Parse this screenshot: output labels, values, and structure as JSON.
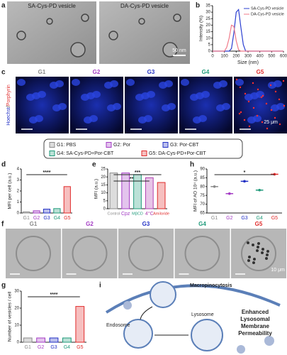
{
  "panel_labels": [
    "a",
    "b",
    "c",
    "d",
    "e",
    "f",
    "g",
    "h",
    "i"
  ],
  "group_colors": [
    "#8a8a8a",
    "#a33bc4",
    "#2230c4",
    "#1f9a7a",
    "#e02b2b"
  ],
  "tem": {
    "labels": [
      "SA-Cys-PD vesicle",
      "DA-Cys-PD vesicle"
    ],
    "scale": "50 nm"
  },
  "fluorescence": {
    "groups": [
      "G1",
      "G2",
      "G3",
      "G4",
      "G5"
    ],
    "channels": [
      "Hoechst",
      "/",
      "Porphyrin"
    ],
    "scale": "25 μm"
  },
  "legend": [
    "G1: PBS",
    "G2: Por",
    "G3: Por-CBT",
    "G4: SA-Cys-PD+Por-CBT",
    "G5: DA-Cys-PD+Por-CBT"
  ],
  "brightfield": {
    "groups": [
      "G1",
      "G2",
      "G3",
      "G4",
      "G5"
    ],
    "scale": "10 μm"
  },
  "schematic": {
    "labels": [
      "Macropinocytosis",
      "Endosome",
      "Lysosome",
      "Enhanced",
      "Lysosomal",
      "Membrane",
      "Permeability"
    ]
  },
  "chart_data": [
    {
      "type": "line",
      "xlabel": "Size (nm)",
      "ylabel": "Intensity (%)",
      "x": [
        0,
        100,
        120,
        140,
        160,
        180,
        200,
        220,
        240,
        260,
        280,
        300,
        400,
        500,
        600
      ],
      "series": [
        {
          "name": "SA-Cys-PD vesicle",
          "color": "#2b3fd1",
          "values": [
            0,
            0,
            0,
            0,
            2,
            14,
            30,
            32,
            18,
            5,
            0,
            0,
            0,
            0,
            0
          ]
        },
        {
          "name": "DA-Cys-PD vesicle",
          "color": "#f07a8a",
          "values": [
            0,
            0,
            3,
            10,
            20,
            19,
            8,
            1,
            0,
            0,
            0,
            0,
            0,
            0,
            0
          ]
        }
      ],
      "xlim": [
        0,
        600
      ],
      "xticks": [
        0,
        100,
        200,
        300,
        400,
        500,
        600
      ],
      "ylim": [
        0,
        35
      ],
      "yticks": [
        0,
        5,
        10,
        15,
        20,
        25,
        30,
        35
      ]
    },
    {
      "type": "bar",
      "ylabel": "MFI per cell (a.u.)",
      "categories": [
        "G1",
        "G2",
        "G3",
        "G4",
        "G5"
      ],
      "values": [
        0.1,
        0.2,
        0.35,
        0.4,
        2.4
      ],
      "colors": [
        "#8a8a8a",
        "#a33bc4",
        "#2230c4",
        "#1f9a7a",
        "#e02b2b"
      ],
      "ylim": [
        0,
        4
      ],
      "yticks": [
        0,
        1,
        2,
        3,
        4
      ],
      "annotations": [
        "****"
      ]
    },
    {
      "type": "bar",
      "ylabel": "MFI (a.u.)",
      "categories": [
        "Control",
        "Cpz",
        "MβCD",
        "4°C",
        "Amiloride"
      ],
      "values": [
        22.5,
        22.5,
        21.5,
        19.5,
        16.5
      ],
      "colors": [
        "#8a8a8a",
        "#a33bc4",
        "#1f9a7a",
        "#b040b0",
        "#e02b2b"
      ],
      "ylim": [
        0,
        25
      ],
      "yticks": [
        0,
        5,
        10,
        15,
        20,
        25
      ],
      "annotations": [
        "***",
        "**"
      ]
    },
    {
      "type": "bar",
      "ylabel": "Number of vesicles / cell",
      "categories": [
        "G1",
        "G2",
        "G3",
        "G4",
        "G5"
      ],
      "values": [
        2.5,
        2.5,
        2.5,
        2.5,
        21
      ],
      "colors": [
        "#8a8a8a",
        "#a33bc4",
        "#2230c4",
        "#1f9a7a",
        "#e02b2b"
      ],
      "ylim": [
        0,
        30
      ],
      "yticks": [
        0,
        10,
        20,
        30
      ],
      "annotations": [
        "****"
      ]
    },
    {
      "type": "dot",
      "ylabel": "MFI of AO 10⁴ (a.u.)",
      "categories": [
        "G1",
        "G2",
        "G3",
        "G4",
        "G5"
      ],
      "values": [
        80,
        76,
        83,
        78,
        87
      ],
      "colors": [
        "#8a8a8a",
        "#a33bc4",
        "#2230c4",
        "#1f9a7a",
        "#e02b2b"
      ],
      "ylim": [
        65,
        90
      ],
      "yticks": [
        65,
        70,
        75,
        80,
        85,
        90
      ],
      "annotations": [
        "*"
      ]
    }
  ]
}
